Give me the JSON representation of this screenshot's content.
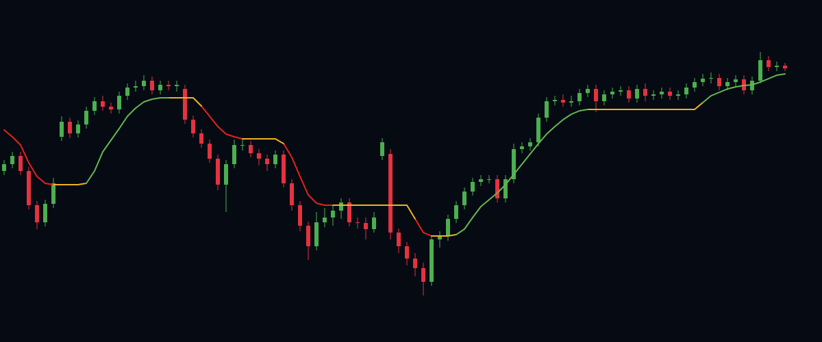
{
  "chart_data": {
    "type": "candlestick",
    "background": "#060b13",
    "up_color": "#4caf50",
    "down_color": "#e5323f",
    "ylim": [
      0,
      500
    ],
    "open": [
      250,
      260,
      272,
      250,
      200,
      175,
      202,
      300,
      322,
      305,
      318,
      338,
      352,
      344,
      340,
      360,
      372,
      374,
      382,
      368,
      376,
      374,
      370,
      325,
      305,
      290,
      268,
      230,
      260,
      288,
      288,
      276,
      268,
      260,
      274,
      232,
      200,
      170,
      140,
      175,
      182,
      192,
      204,
      175,
      174,
      165,
      272,
      275,
      160,
      140,
      122,
      108,
      88,
      150,
      155,
      180,
      200,
      220,
      234,
      238,
      238,
      210,
      238,
      282,
      286,
      292,
      328,
      352,
      354,
      350,
      352,
      364,
      370,
      352,
      362,
      366,
      368,
      356,
      370,
      360,
      362,
      366,
      360,
      362,
      372,
      380,
      385,
      386,
      374,
      380,
      384,
      368,
      382,
      412,
      402,
      404
    ],
    "high": [
      266,
      278,
      278,
      256,
      206,
      208,
      240,
      330,
      328,
      324,
      344,
      358,
      360,
      350,
      366,
      378,
      382,
      390,
      388,
      382,
      382,
      382,
      376,
      331,
      311,
      296,
      274,
      266,
      296,
      296,
      294,
      282,
      274,
      280,
      280,
      238,
      206,
      176,
      190,
      196,
      200,
      210,
      210,
      182,
      182,
      190,
      298,
      282,
      166,
      146,
      130,
      116,
      156,
      162,
      186,
      206,
      226,
      240,
      244,
      244,
      244,
      244,
      290,
      292,
      298,
      334,
      358,
      360,
      362,
      360,
      370,
      376,
      376,
      368,
      372,
      374,
      374,
      376,
      378,
      368,
      372,
      372,
      368,
      378,
      386,
      392,
      394,
      392,
      386,
      390,
      390,
      388,
      424,
      418,
      410,
      408
    ],
    "low": [
      244,
      254,
      244,
      194,
      165,
      169,
      196,
      294,
      298,
      299,
      312,
      332,
      338,
      334,
      334,
      354,
      366,
      368,
      362,
      362,
      368,
      366,
      319,
      299,
      284,
      262,
      222,
      190,
      254,
      280,
      270,
      258,
      250,
      254,
      226,
      192,
      162,
      120,
      134,
      168,
      170,
      180,
      169,
      166,
      150,
      160,
      266,
      150,
      130,
      112,
      96,
      68,
      82,
      138,
      148,
      174,
      194,
      214,
      228,
      232,
      204,
      204,
      232,
      276,
      280,
      286,
      322,
      346,
      344,
      344,
      346,
      358,
      336,
      346,
      356,
      360,
      350,
      350,
      352,
      354,
      356,
      354,
      354,
      356,
      366,
      374,
      378,
      368,
      368,
      374,
      362,
      362,
      378,
      396,
      396,
      396
    ],
    "close": [
      260,
      272,
      250,
      200,
      175,
      202,
      232,
      322,
      305,
      318,
      338,
      352,
      344,
      340,
      360,
      372,
      374,
      382,
      368,
      376,
      374,
      376,
      325,
      305,
      290,
      268,
      230,
      260,
      288,
      288,
      276,
      268,
      260,
      274,
      232,
      200,
      170,
      140,
      175,
      182,
      192,
      204,
      175,
      174,
      165,
      182,
      292,
      160,
      140,
      122,
      108,
      88,
      150,
      155,
      180,
      200,
      220,
      234,
      238,
      238,
      210,
      238,
      282,
      286,
      292,
      328,
      352,
      354,
      350,
      352,
      364,
      370,
      352,
      362,
      366,
      368,
      356,
      370,
      360,
      362,
      366,
      360,
      362,
      372,
      380,
      385,
      386,
      374,
      380,
      384,
      368,
      382,
      412,
      402,
      404,
      400
    ],
    "series": [
      {
        "color": "#e8201a",
        "values": [
          310,
          300,
          288,
          262,
          242,
          232,
          230,
          null,
          null,
          null,
          null,
          null,
          null,
          null,
          null,
          null,
          null,
          null,
          null,
          null,
          null,
          null,
          null,
          null,
          345,
          330,
          315,
          304,
          300,
          297,
          null,
          null,
          null,
          null,
          290,
          270,
          242,
          215,
          203,
          200,
          200,
          null,
          null,
          null,
          null,
          null,
          null,
          null,
          null,
          null,
          180,
          160,
          155,
          null,
          null,
          null,
          null,
          null,
          null,
          null,
          null,
          null,
          null,
          null,
          null,
          null,
          null,
          null,
          null,
          null,
          null,
          null,
          null,
          null,
          null,
          null,
          null,
          null,
          null,
          null,
          null,
          null,
          null,
          null,
          null,
          null,
          null,
          null,
          null,
          null,
          null,
          null,
          null,
          null,
          null,
          null
        ]
      },
      {
        "color": "#f0b21e",
        "values": [
          null,
          null,
          null,
          null,
          null,
          null,
          230,
          230,
          230,
          230,
          232,
          null,
          null,
          null,
          null,
          null,
          null,
          null,
          null,
          null,
          357,
          357,
          357,
          357,
          345,
          null,
          null,
          null,
          null,
          297,
          297,
          297,
          297,
          297,
          290,
          null,
          null,
          null,
          null,
          null,
          200,
          200,
          200,
          200,
          200,
          200,
          200,
          200,
          200,
          200,
          180,
          null,
          155,
          155,
          155,
          157,
          null,
          null,
          null,
          null,
          null,
          null,
          null,
          null,
          null,
          null,
          null,
          null,
          null,
          null,
          null,
          340,
          340,
          340,
          340,
          340,
          340,
          340,
          340,
          340,
          340,
          340,
          340,
          340,
          340,
          350,
          null,
          null,
          null,
          null,
          null,
          null,
          null,
          null,
          null,
          null
        ]
      },
      {
        "color": "#66b850",
        "values": [
          null,
          null,
          null,
          null,
          null,
          null,
          null,
          null,
          null,
          null,
          232,
          250,
          278,
          295,
          312,
          330,
          342,
          351,
          355,
          357,
          357,
          null,
          null,
          null,
          null,
          null,
          null,
          null,
          null,
          null,
          null,
          null,
          null,
          null,
          null,
          null,
          null,
          null,
          null,
          null,
          null,
          null,
          null,
          null,
          null,
          null,
          null,
          null,
          null,
          null,
          null,
          null,
          null,
          null,
          null,
          157,
          165,
          182,
          198,
          208,
          218,
          230,
          245,
          260,
          275,
          290,
          304,
          315,
          325,
          333,
          338,
          340,
          null,
          null,
          null,
          null,
          null,
          null,
          null,
          null,
          null,
          null,
          null,
          null,
          null,
          350,
          360,
          365,
          370,
          373,
          375,
          376,
          380,
          385,
          390,
          392
        ]
      }
    ]
  }
}
